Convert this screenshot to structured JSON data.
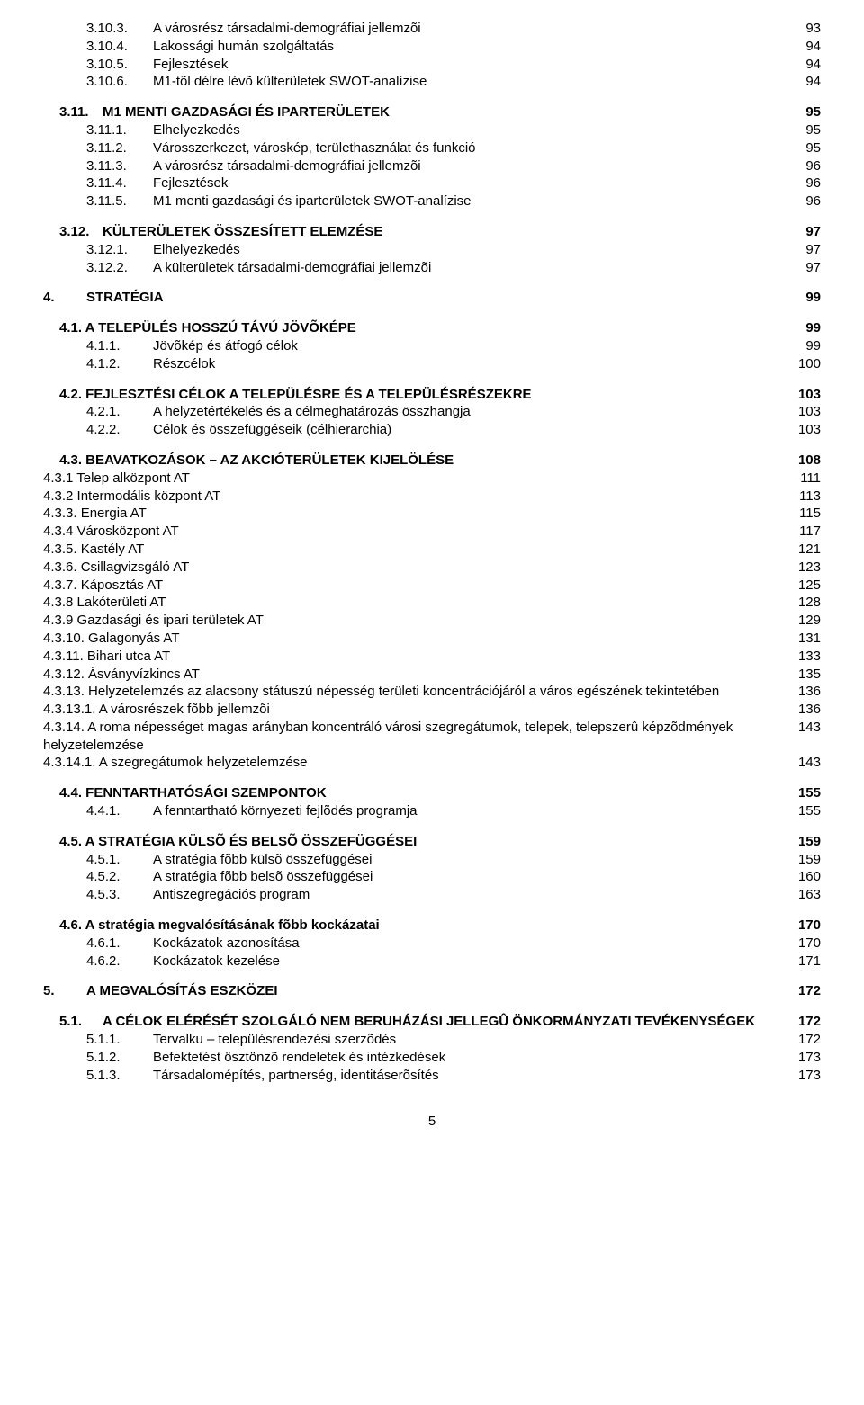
{
  "lines": [
    {
      "num": "3.10.3.",
      "txt": "A városrész társadalmi-demográfiai jellemzõi",
      "pg": "93",
      "cls": "indent-2"
    },
    {
      "num": "3.10.4.",
      "txt": "Lakossági humán szolgáltatás",
      "pg": "94",
      "cls": "indent-2"
    },
    {
      "num": "3.10.5.",
      "txt": "Fejlesztések",
      "pg": "94",
      "cls": "indent-2"
    },
    {
      "num": "3.10.6.",
      "txt": "M1-tõl délre lévõ külterületek SWOT-analízise",
      "pg": "94",
      "cls": "indent-2"
    },
    {
      "num": "3.11.",
      "txt": "M1 MENTI GAZDASÁGI ÉS IPARTERÜLETEK",
      "pg": "95",
      "cls": "lvl0b section-gap"
    },
    {
      "num": "3.11.1.",
      "txt": "Elhelyezkedés",
      "pg": "95",
      "cls": "indent-2"
    },
    {
      "num": "3.11.2.",
      "txt": "Városszerkezet, városkép, területhasználat és funkció",
      "pg": "95",
      "cls": "indent-2"
    },
    {
      "num": "3.11.3.",
      "txt": "A városrész társadalmi-demográfiai jellemzõi",
      "pg": "96",
      "cls": "indent-2"
    },
    {
      "num": "3.11.4.",
      "txt": "Fejlesztések",
      "pg": "96",
      "cls": "indent-2"
    },
    {
      "num": "3.11.5.",
      "txt": "M1 menti gazdasági és iparterületek SWOT-analízise",
      "pg": "96",
      "cls": "indent-2"
    },
    {
      "num": "3.12.",
      "txt": "KÜLTERÜLETEK ÖSSZESÍTETT ELEMZÉSE",
      "pg": "97",
      "cls": "lvl0b section-gap"
    },
    {
      "num": "3.12.1.",
      "txt": "Elhelyezkedés",
      "pg": "97",
      "cls": "indent-2"
    },
    {
      "num": "3.12.2.",
      "txt": "A külterületek társadalmi-demográfiai jellemzõi",
      "pg": "97",
      "cls": "indent-2"
    },
    {
      "num": "4.",
      "txt": "STRATÉGIA",
      "pg": "99",
      "cls": "lvl0 section-gap"
    },
    {
      "num": "",
      "txt": "4.1. A TELEPÜLÉS HOSSZÚ TÁVÚ JÖVÕKÉPE",
      "pg": "99",
      "cls": "indent-sub bold section-gap"
    },
    {
      "num": "4.1.1.",
      "txt": "Jövõkép és átfogó célok",
      "pg": "99",
      "cls": "indent-2"
    },
    {
      "num": "4.1.2.",
      "txt": "Részcélok",
      "pg": "100",
      "cls": "indent-2"
    },
    {
      "num": "",
      "txt": "4.2. FEJLESZTÉSI CÉLOK A TELEPÜLÉSRE ÉS A TELEPÜLÉSRÉSZEKRE",
      "pg": "103",
      "cls": "indent-sub bold section-gap"
    },
    {
      "num": "4.2.1.",
      "txt": "A helyzetértékelés és a célmeghatározás összhangja",
      "pg": "103",
      "cls": "indent-2"
    },
    {
      "num": "4.2.2.",
      "txt": "Célok és összefüggéseik (célhierarchia)",
      "pg": "103",
      "cls": "indent-2"
    },
    {
      "num": "",
      "txt": "4.3. BEAVATKOZÁSOK – AZ AKCIÓTERÜLETEK KIJELÖLÉSE",
      "pg": "108",
      "cls": "indent-sub bold section-gap"
    },
    {
      "num": "",
      "txt": "4.3.1 Telep alközpont AT",
      "pg": "111",
      "cls": "indent-2"
    },
    {
      "num": "",
      "txt": "4.3.2 Intermodális központ AT",
      "pg": "113",
      "cls": "indent-2"
    },
    {
      "num": "",
      "txt": "4.3.3. Energia AT",
      "pg": "115",
      "cls": "indent-2"
    },
    {
      "num": "",
      "txt": "4.3.4 Városközpont AT",
      "pg": "117",
      "cls": "indent-2"
    },
    {
      "num": "",
      "txt": "4.3.5. Kastély AT",
      "pg": "121",
      "cls": "indent-2"
    },
    {
      "num": "",
      "txt": "4.3.6. Csillagvizsgáló AT",
      "pg": "123",
      "cls": "indent-2"
    },
    {
      "num": "",
      "txt": "4.3.7. Káposztás AT",
      "pg": "125",
      "cls": "indent-2"
    },
    {
      "num": "",
      "txt": "4.3.8 Lakóterületi AT",
      "pg": "128",
      "cls": "indent-2"
    },
    {
      "num": "",
      "txt": "4.3.9 Gazdasági és ipari területek AT",
      "pg": "129",
      "cls": "indent-2"
    },
    {
      "num": "",
      "txt": "4.3.10. Galagonyás AT",
      "pg": "131",
      "cls": "indent-2"
    },
    {
      "num": "",
      "txt": "4.3.11. Bihari utca AT",
      "pg": "133",
      "cls": "indent-2"
    },
    {
      "num": "",
      "txt": "4.3.12. Ásványvízkincs AT",
      "pg": "135",
      "cls": "indent-2"
    },
    {
      "num": "",
      "txt": "4.3.13. Helyzetelemzés az alacsony státuszú népesség területi koncentrációjáról a város egészének tekintetében",
      "pg": "136",
      "cls": "indent-2"
    },
    {
      "num": "",
      "txt": "4.3.13.1. A városrészek fõbb jellemzõi",
      "pg": "136",
      "cls": "indent-2"
    },
    {
      "num": "",
      "txt": "4.3.14. A roma népességet magas arányban koncentráló városi szegregátumok, telepek, telepszerû képzõdmények helyzetelemzése",
      "pg": "143",
      "cls": "indent-2"
    },
    {
      "num": "",
      "txt": "4.3.14.1. A szegregátumok helyzetelemzése",
      "pg": "143",
      "cls": "indent-2"
    },
    {
      "num": "",
      "txt": "4.4. FENNTARTHATÓSÁGI SZEMPONTOK",
      "pg": "155",
      "cls": "indent-sub bold section-gap"
    },
    {
      "num": "4.4.1.",
      "txt": "A fenntartható környezeti fejlõdés programja",
      "pg": "155",
      "cls": "indent-2"
    },
    {
      "num": "",
      "txt": "4.5. A STRATÉGIA KÜLSÕ ÉS BELSÕ ÖSSZEFÜGGÉSEI",
      "pg": "159",
      "cls": "indent-sub bold section-gap"
    },
    {
      "num": "4.5.1.",
      "txt": "A stratégia fõbb külsõ összefüggései",
      "pg": "159",
      "cls": "indent-2"
    },
    {
      "num": "4.5.2.",
      "txt": "A stratégia fõbb belsõ összefüggései",
      "pg": "160",
      "cls": "indent-2"
    },
    {
      "num": "4.5.3.",
      "txt": "Antiszegregációs program",
      "pg": "163",
      "cls": "indent-2"
    },
    {
      "num": "",
      "txt": "4.6. A stratégia megvalósításának fõbb kockázatai",
      "pg": "170",
      "cls": "indent-sub bold section-gap"
    },
    {
      "num": "4.6.1.",
      "txt": "Kockázatok azonosítása",
      "pg": "170",
      "cls": "indent-2"
    },
    {
      "num": "4.6.2.",
      "txt": "Kockázatok kezelése",
      "pg": "171",
      "cls": "indent-2"
    },
    {
      "num": "5.",
      "txt": "A MEGVALÓSÍTÁS ESZKÖZEI",
      "pg": "172",
      "cls": "lvl0 section-gap"
    },
    {
      "num": "5.1.",
      "txt": "A CÉLOK ELÉRÉSÉT SZOLGÁLÓ NEM BERUHÁZÁSI JELLEGÛ ÖNKORMÁNYZATI TEVÉKENYSÉGEK",
      "pg": "172",
      "cls": "lvl0b section-gap"
    },
    {
      "num": "5.1.1.",
      "txt": "Tervalku – településrendezési szerzõdés",
      "pg": "172",
      "cls": "indent-2"
    },
    {
      "num": "5.1.2.",
      "txt": "Befektetést ösztönzõ rendeletek és intézkedések",
      "pg": "173",
      "cls": "indent-2"
    },
    {
      "num": "5.1.3.",
      "txt": "Társadalomépítés, partnerség, identitáserõsítés",
      "pg": "173",
      "cls": "indent-2"
    }
  ],
  "page_number": "5"
}
